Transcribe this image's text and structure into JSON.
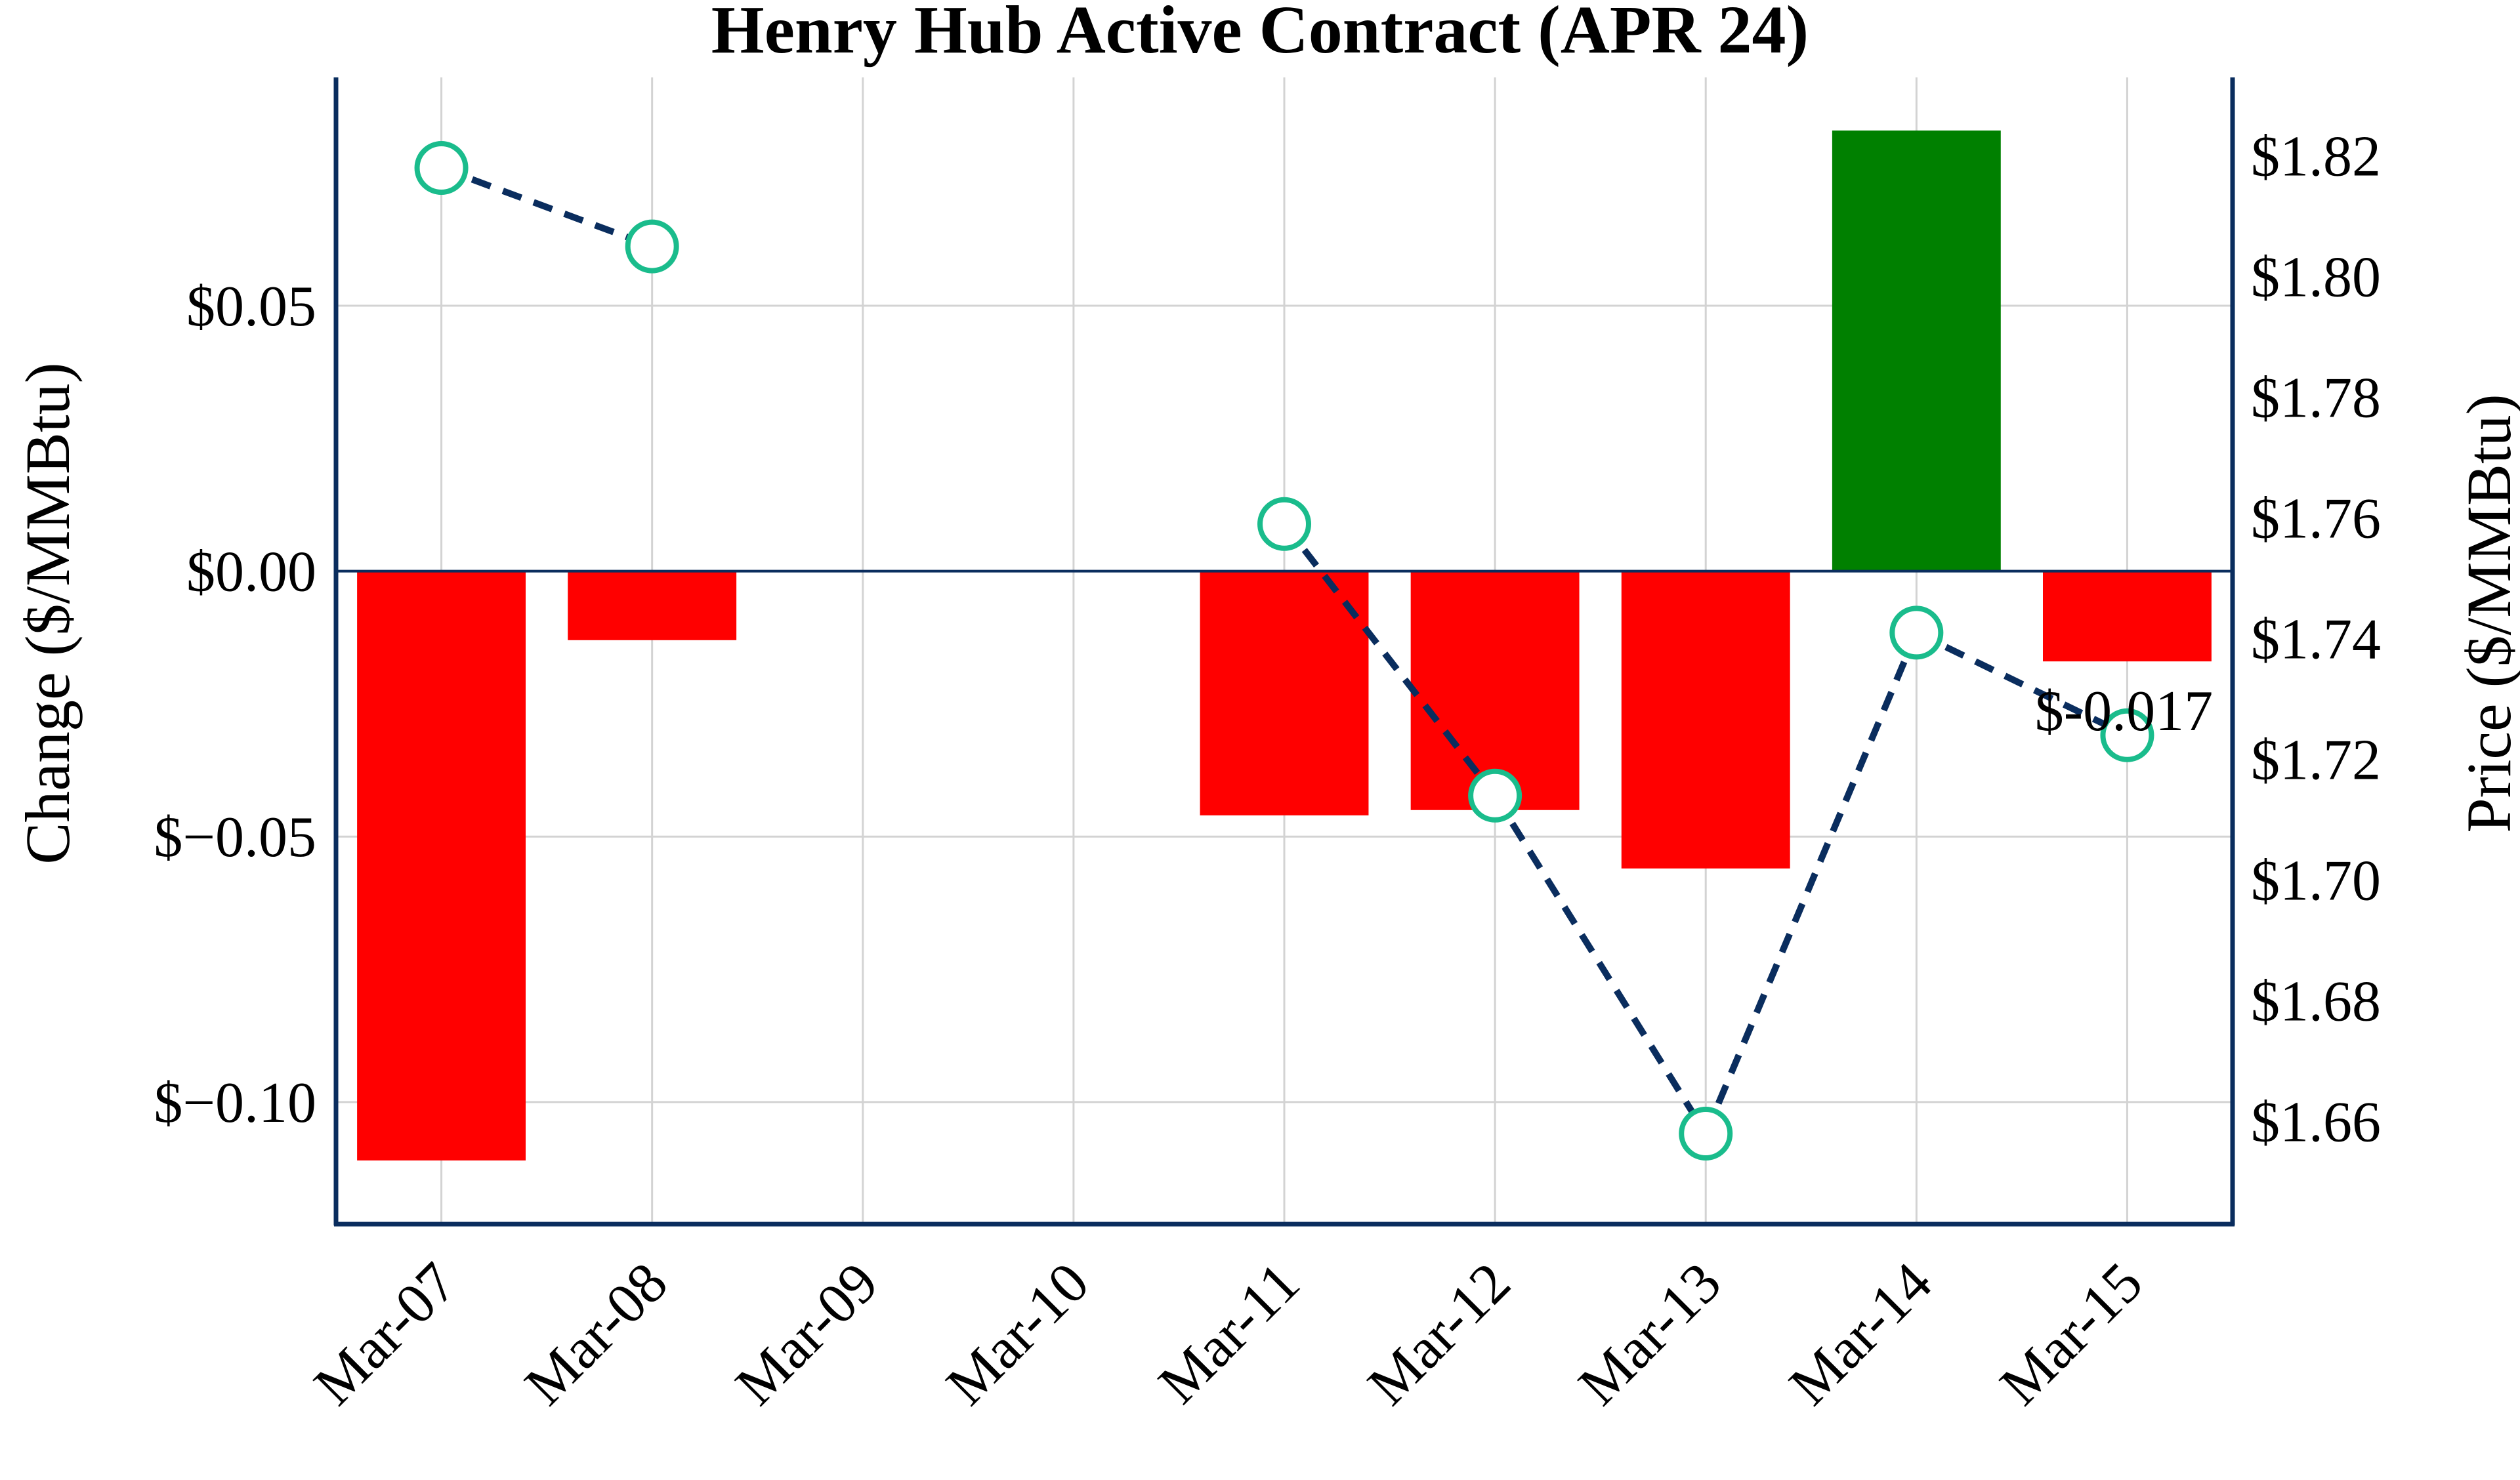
{
  "chart_data": {
    "type": "bar",
    "title": "Henry Hub Active Contract (APR 24)",
    "categories": [
      "Mar-07",
      "Mar-08",
      "Mar-09",
      "Mar-10",
      "Mar-11",
      "Mar-12",
      "Mar-13",
      "Mar-14",
      "Mar-15"
    ],
    "y_left": {
      "label": "Change ($/MMBtu)",
      "ylim": [
        -0.123,
        0.093
      ],
      "ticks": [
        0.05,
        0.0,
        -0.05,
        -0.1
      ],
      "tick_labels": [
        "$0.05",
        "$0.00",
        "$−0.05",
        "$−0.10"
      ]
    },
    "y_right": {
      "label": "Price ($/MMBtu)",
      "ylim": [
        1.643,
        1.833
      ],
      "ticks": [
        1.82,
        1.8,
        1.78,
        1.76,
        1.74,
        1.72,
        1.7,
        1.68,
        1.66
      ],
      "tick_labels": [
        "$1.82",
        "$1.80",
        "$1.78",
        "$1.76",
        "$1.74",
        "$1.72",
        "$1.70",
        "$1.68",
        "$1.66"
      ]
    },
    "series": [
      {
        "type": "bar",
        "axis": "left",
        "values": [
          -0.111,
          -0.013,
          null,
          null,
          -0.046,
          -0.045,
          -0.056,
          0.083,
          -0.017
        ],
        "positive_color": "#008000",
        "negative_color": "#ff0000"
      },
      {
        "type": "line",
        "axis": "right",
        "values": [
          1.818,
          1.805,
          null,
          null,
          1.759,
          1.714,
          1.658,
          1.741,
          1.724
        ],
        "line_color": "#0a2d5e",
        "marker_color": "#1abc8c",
        "line_style": "dashed"
      }
    ],
    "annotations": [
      {
        "category": "Mar-15",
        "text": "$-0.017"
      }
    ],
    "grid": true,
    "frame_color": "#0a2d5e"
  }
}
